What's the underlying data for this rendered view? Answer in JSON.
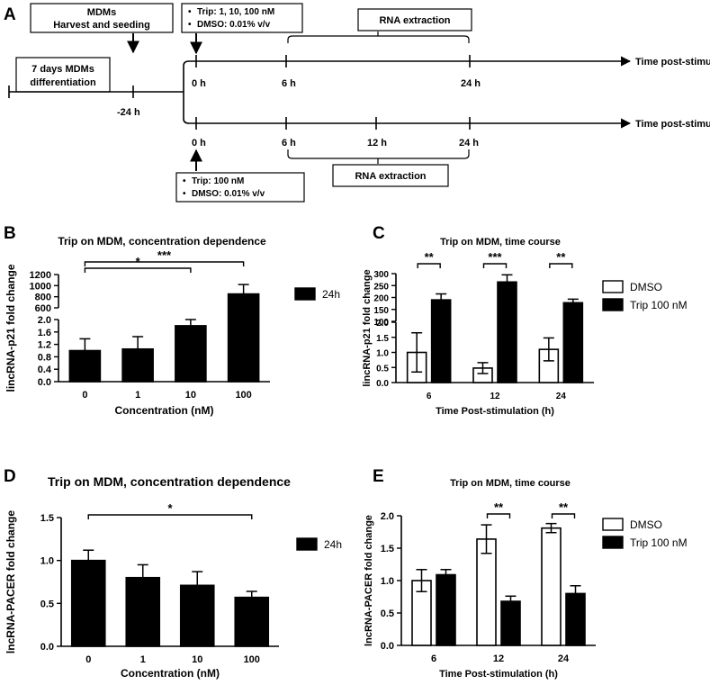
{
  "colors": {
    "ink": "#000000",
    "paper": "#ffffff"
  },
  "panel_a": {
    "letter": "A",
    "boxes": {
      "mdms": [
        "MDMs",
        "Harvest and seeding"
      ],
      "diff": [
        "7 days MDMs",
        "differentiation"
      ],
      "trip_top": [
        "Trip: 1, 10, 100 nM",
        "DMSO: 0.01% v/v"
      ],
      "rna_top": "RNA extraction",
      "trip_bottom": [
        "Trip: 100 nM",
        "DMSO: 0.01% v/v"
      ],
      "rna_bottom": "RNA extraction"
    },
    "bullet": "•",
    "ticks": {
      "minus24": "-24  h",
      "top": [
        "0  h",
        "6  h",
        "24  h"
      ],
      "bottom": [
        "0  h",
        "6  h",
        "12  h",
        "24  h"
      ]
    },
    "axis_label": "Time post-stimulation"
  },
  "chart_data": [
    {
      "panel": "B",
      "type": "bar",
      "title": "Trip on MDM, concentration dependence",
      "xlabel": "Concentration (nM)",
      "ylabel": "lincRNA-p21 fold change",
      "categories": [
        "0",
        "1",
        "10",
        "100"
      ],
      "series": [
        {
          "name": "24h",
          "values": [
            1.0,
            1.05,
            1.8,
            850
          ],
          "errors": [
            0.38,
            0.4,
            0.25,
            170
          ]
        }
      ],
      "axis_break": true,
      "lower_ylim": [
        0,
        2.0
      ],
      "lower_ticks": [
        "0.0",
        "0.4",
        "0.8",
        "1.2",
        "1.6",
        "2.0"
      ],
      "upper_ylim": [
        600,
        1200
      ],
      "upper_ticks": [
        "600",
        "800",
        "1000",
        "1200"
      ],
      "significance": [
        {
          "from": "0",
          "to": "10",
          "label": "*"
        },
        {
          "from": "0",
          "to": "100",
          "label": "***"
        }
      ]
    },
    {
      "panel": "C",
      "type": "bar",
      "title": "Trip on MDM, time course",
      "xlabel": "Time Post-stimulation (h)",
      "ylabel": "lincRNA-p21 fold change",
      "categories": [
        "6",
        "12",
        "24"
      ],
      "series": [
        {
          "name": "DMSO",
          "values": [
            1.0,
            0.48,
            1.1
          ],
          "errors": [
            0.65,
            0.18,
            0.38
          ]
        },
        {
          "name": "Trip 100 nM",
          "values": [
            190,
            265,
            178
          ],
          "errors": [
            25,
            30,
            15
          ]
        }
      ],
      "axis_break": true,
      "lower_ylim": [
        0,
        2.0
      ],
      "lower_ticks": [
        "0.0",
        "0.5",
        "1.0",
        "1.5",
        "2.0"
      ],
      "upper_ylim": [
        100,
        300
      ],
      "upper_ticks": [
        "100",
        "150",
        "200",
        "250",
        "300"
      ],
      "significance": [
        {
          "category": "6",
          "label": "**"
        },
        {
          "category": "12",
          "label": "***"
        },
        {
          "category": "24",
          "label": "**"
        }
      ]
    },
    {
      "panel": "D",
      "type": "bar",
      "title": "Trip on MDM, concentration dependence",
      "xlabel": "Concentration (nM)",
      "ylabel": "lncRNA-PACER fold change",
      "categories": [
        "0",
        "1",
        "10",
        "100"
      ],
      "series": [
        {
          "name": "24h",
          "values": [
            1.0,
            0.8,
            0.71,
            0.57
          ],
          "errors": [
            0.12,
            0.15,
            0.16,
            0.07
          ]
        }
      ],
      "ylim": [
        0,
        1.5
      ],
      "yticks": [
        "0.0",
        "0.5",
        "1.0",
        "1.5"
      ],
      "significance": [
        {
          "from": "0",
          "to": "100",
          "label": "*"
        }
      ]
    },
    {
      "panel": "E",
      "type": "bar",
      "title": "Trip on MDM, time course",
      "xlabel": "Time Post-stimulation (h)",
      "ylabel": "lncRNA-PACER  fold change",
      "categories": [
        "6",
        "12",
        "24"
      ],
      "series": [
        {
          "name": "DMSO",
          "values": [
            1.0,
            1.64,
            1.81
          ],
          "errors": [
            0.17,
            0.22,
            0.07
          ]
        },
        {
          "name": "Trip 100 nM",
          "values": [
            1.09,
            0.68,
            0.8
          ],
          "errors": [
            0.08,
            0.08,
            0.12
          ]
        }
      ],
      "ylim": [
        0,
        2.0
      ],
      "yticks": [
        "0.0",
        "0.5",
        "1.0",
        "1.5",
        "2.0"
      ],
      "significance": [
        {
          "category": "12",
          "label": "**"
        },
        {
          "category": "24",
          "label": "**"
        }
      ]
    }
  ]
}
